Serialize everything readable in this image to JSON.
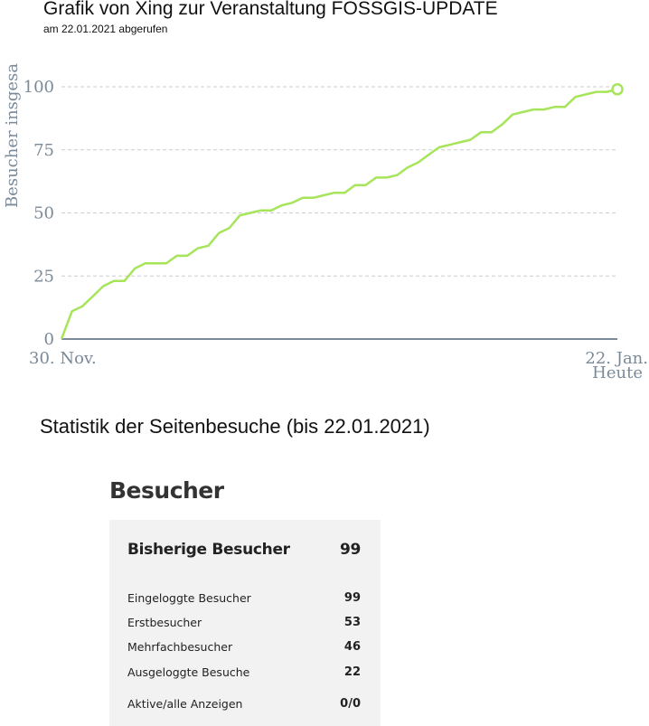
{
  "header": {
    "title": "Grafik von Xing zur Veranstaltung FOSSGIS-UPDATE",
    "subtitle": "am 22.01.2021 abgerufen"
  },
  "chart_data": {
    "type": "line",
    "ylabel": "Besucher insgesa",
    "x_tick_labels": [
      "30. Nov.",
      "22. Jan."
    ],
    "x_end_sublabel": "Heute",
    "y_ticks": [
      0,
      25,
      50,
      75,
      100
    ],
    "ylim": [
      0,
      100
    ],
    "grid": "horizontal dashed",
    "line_color": "#a6e55a",
    "axis_color": "#7a8a99",
    "values": [
      0,
      11,
      13,
      17,
      21,
      23,
      23,
      28,
      30,
      30,
      30,
      33,
      33,
      36,
      37,
      42,
      44,
      49,
      50,
      51,
      51,
      53,
      54,
      56,
      56,
      57,
      58,
      58,
      61,
      61,
      64,
      64,
      65,
      68,
      70,
      73,
      76,
      77,
      78,
      79,
      82,
      82,
      85,
      89,
      90,
      91,
      91,
      92,
      92,
      96,
      97,
      98,
      98,
      99
    ],
    "last_point_marker": "open-circle"
  },
  "stats": {
    "heading": "Statistik der Seitenbesuche (bis 22.01.2021)",
    "box_title": "Besucher",
    "total": {
      "label": "Bisherige Besucher",
      "value": "99"
    },
    "rows": [
      {
        "label": "Eingeloggte Besucher",
        "value": "99"
      },
      {
        "label": "Erstbesucher",
        "value": "53"
      },
      {
        "label": "Mehrfachbesucher",
        "value": "46"
      },
      {
        "label": "Ausgeloggte Besuche",
        "value": "22"
      },
      {
        "label": "Aktive/alle Anzeigen",
        "value": "0/0"
      }
    ]
  }
}
